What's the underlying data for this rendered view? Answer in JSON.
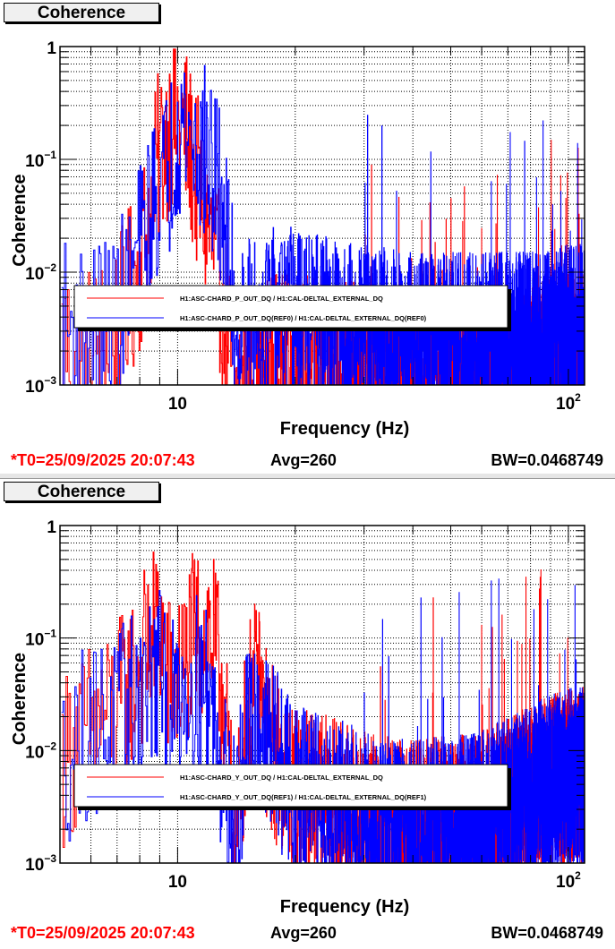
{
  "chart_data": [
    {
      "type": "line",
      "panel_title": "Coherence",
      "xlabel": "Frequency (Hz)",
      "ylabel": "Coherence",
      "xscale": "log",
      "yscale": "log",
      "xlim": [
        5,
        110
      ],
      "ylim": [
        0.001,
        1
      ],
      "grid": true,
      "x_tick_labels": [
        {
          "value": 10,
          "text": "10"
        },
        {
          "value": 100,
          "base": "10",
          "exp": "2"
        }
      ],
      "y_tick_labels": [
        {
          "value": 1,
          "text": "1"
        },
        {
          "value": 0.1,
          "base": "10",
          "exp": "−1"
        },
        {
          "value": 0.01,
          "base": "10",
          "exp": "−2"
        },
        {
          "value": 0.001,
          "base": "10",
          "exp": "−3"
        }
      ],
      "legend_position": "bottom",
      "series": [
        {
          "name": "H1:ASC-CHARD_P_OUT_DQ / H1:CAL-DELTAL_EXTERNAL_DQ",
          "color": "#ff0000",
          "x": [
            5,
            6,
            7,
            8,
            9,
            9.5,
            10,
            10.5,
            11,
            12,
            13,
            14,
            15,
            17,
            20,
            25,
            30,
            40,
            60,
            80,
            100
          ],
          "y": [
            0.006,
            0.005,
            0.008,
            0.03,
            0.3,
            0.5,
            0.55,
            0.4,
            0.2,
            0.06,
            0.015,
            0.002,
            0.003,
            0.004,
            0.004,
            0.004,
            0.003,
            0.003,
            0.003,
            0.003,
            0.004
          ]
        },
        {
          "name": "H1:ASC-CHARD_P_OUT_DQ(REF0) / H1:CAL-DELTAL_EXTERNAL_DQ(REF0)",
          "color": "#0000ff",
          "x": [
            5,
            6,
            7,
            8,
            9,
            9.5,
            10,
            10.5,
            11,
            12,
            13,
            14,
            15,
            17,
            20,
            25,
            30,
            40,
            60,
            80,
            100
          ],
          "y": [
            0.008,
            0.007,
            0.01,
            0.04,
            0.15,
            0.2,
            0.55,
            0.45,
            0.35,
            0.25,
            0.1,
            0.01,
            0.008,
            0.01,
            0.01,
            0.008,
            0.007,
            0.006,
            0.006,
            0.006,
            0.007
          ]
        }
      ],
      "status": {
        "t0": "*T0=25/09/2025 20:07:43",
        "avg": "Avg=260",
        "bw": "BW=0.0468749"
      }
    },
    {
      "type": "line",
      "panel_title": "Coherence",
      "xlabel": "Frequency (Hz)",
      "ylabel": "Coherence",
      "xscale": "log",
      "yscale": "log",
      "xlim": [
        5,
        110
      ],
      "ylim": [
        0.001,
        1
      ],
      "grid": true,
      "x_tick_labels": [
        {
          "value": 10,
          "text": "10"
        },
        {
          "value": 100,
          "base": "10",
          "exp": "2"
        }
      ],
      "y_tick_labels": [
        {
          "value": 1,
          "text": "1"
        },
        {
          "value": 0.1,
          "base": "10",
          "exp": "−1"
        },
        {
          "value": 0.01,
          "base": "10",
          "exp": "−2"
        },
        {
          "value": 0.001,
          "base": "10",
          "exp": "−3"
        }
      ],
      "legend_position": "bottom",
      "series": [
        {
          "name": "H1:ASC-CHARD_Y_OUT_DQ / H1:CAL-DELTAL_EXTERNAL_DQ",
          "color": "#ff0000",
          "x": [
            5,
            6,
            7,
            8,
            9,
            9.5,
            10,
            11,
            12,
            13,
            14,
            15,
            16,
            17,
            20,
            25,
            30,
            40,
            60,
            80,
            100
          ],
          "y": [
            0.02,
            0.04,
            0.06,
            0.15,
            0.35,
            0.1,
            0.1,
            0.25,
            0.3,
            0.1,
            0.003,
            0.05,
            0.1,
            0.03,
            0.01,
            0.008,
            0.006,
            0.005,
            0.006,
            0.01,
            0.015
          ]
        },
        {
          "name": "H1:ASC-CHARD_Y_OUT_DQ(REF1) / H1:CAL-DELTAL_EXTERNAL_DQ(REF1)",
          "color": "#0000ff",
          "x": [
            5,
            6,
            7,
            8,
            9,
            9.5,
            10,
            11,
            12,
            13,
            14,
            15,
            16,
            17,
            20,
            25,
            30,
            40,
            60,
            80,
            100
          ],
          "y": [
            0.02,
            0.04,
            0.05,
            0.08,
            0.12,
            0.05,
            0.08,
            0.1,
            0.08,
            0.02,
            0.005,
            0.03,
            0.05,
            0.03,
            0.01,
            0.008,
            0.006,
            0.005,
            0.006,
            0.01,
            0.015
          ]
        }
      ],
      "status": {
        "t0": "*T0=25/09/2025 20:07:43",
        "avg": "Avg=260",
        "bw": "BW=0.0468749"
      }
    }
  ]
}
